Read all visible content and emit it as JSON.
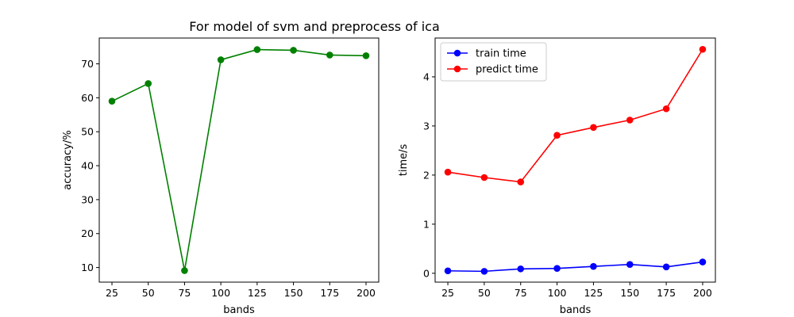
{
  "figure": {
    "title": "For model of svm and preprocess of ica"
  },
  "chart_data": [
    {
      "type": "line",
      "xlabel": "bands",
      "ylabel": "accuracy/%",
      "x": [
        25,
        50,
        75,
        100,
        125,
        150,
        175,
        200
      ],
      "xticks": [
        25,
        50,
        75,
        100,
        125,
        150,
        175,
        200
      ],
      "yticks": [
        10,
        20,
        30,
        40,
        50,
        60,
        70
      ],
      "xlim": [
        16.25,
        208.75
      ],
      "ylim": [
        5.7,
        77.6
      ],
      "grid": false,
      "series": [
        {
          "values": [
            59.0,
            64.2,
            9.1,
            71.2,
            74.2,
            74.0,
            72.6,
            72.4
          ],
          "color": "#008000",
          "marker": "circle"
        }
      ]
    },
    {
      "type": "line",
      "xlabel": "bands",
      "ylabel": "time/s",
      "x": [
        25,
        50,
        75,
        100,
        125,
        150,
        175,
        200
      ],
      "xticks": [
        25,
        50,
        75,
        100,
        125,
        150,
        175,
        200
      ],
      "yticks": [
        0,
        1,
        2,
        3,
        4
      ],
      "xlim": [
        16.25,
        208.75
      ],
      "ylim": [
        -0.18,
        4.79
      ],
      "grid": false,
      "legend": "top-left",
      "series": [
        {
          "name": "train time",
          "values": [
            0.05,
            0.04,
            0.09,
            0.1,
            0.14,
            0.18,
            0.13,
            0.23
          ],
          "color": "#0000ff",
          "marker": "circle"
        },
        {
          "name": "predict time",
          "values": [
            2.06,
            1.95,
            1.86,
            2.81,
            2.97,
            3.12,
            3.35,
            4.56
          ],
          "color": "#ff0000",
          "marker": "circle"
        }
      ]
    }
  ]
}
